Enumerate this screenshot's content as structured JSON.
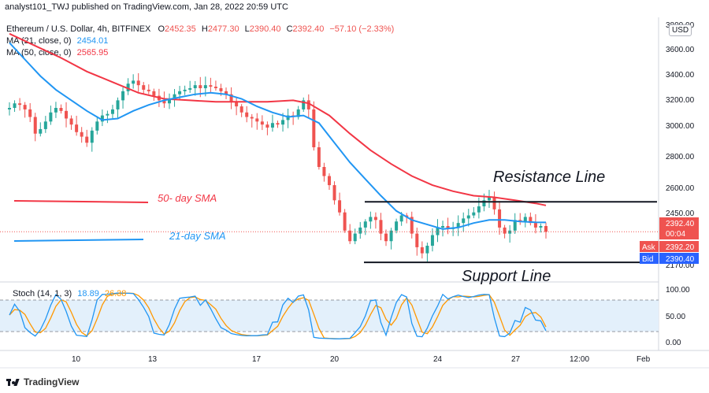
{
  "header": {
    "published": "analyst101_TWJ published on TradingView.com, Jan 28, 2022 20:59 UTC"
  },
  "ohlc_legend": {
    "symbol": "Ethereum / U.S. Dollar, 4h, BITFINEX",
    "o_label": "O",
    "o_value": "2452.35",
    "h_label": "H",
    "h_value": "2477.30",
    "l_label": "L",
    "l_value": "2390.40",
    "c_label": "C",
    "c_value": "2392.40",
    "change": "−57.10 (−2.33%)"
  },
  "ma_legends": [
    {
      "label": "MA (21, close, 0)",
      "value": "2454.01",
      "color": "#2196f3"
    },
    {
      "label": "MA (50, close, 0)",
      "value": "2565.95",
      "color": "#f23645"
    }
  ],
  "stoch_legend": {
    "label": "Stoch (14, 1, 3)",
    "k": "18.89",
    "d": "26.38",
    "k_color": "#2196f3",
    "d_color": "#ff9800"
  },
  "price_axis": {
    "currency": "USD",
    "ticks": [
      "3800.00",
      "3600.00",
      "3400.00",
      "3200.00",
      "3000.00",
      "2800.00",
      "2600.00",
      "2450.00",
      "2170.00"
    ],
    "last_price": "2392.40",
    "countdown": "00:04",
    "ask_label": "Ask",
    "ask_value": "2392.20",
    "bid_label": "Bid",
    "bid_value": "2390.40"
  },
  "stoch_axis": {
    "ticks": [
      "100.00",
      "50.00",
      "0.00"
    ]
  },
  "time_axis": {
    "ticks": [
      "10",
      "13",
      "17",
      "20",
      "24",
      "27",
      "12:00",
      "Feb"
    ]
  },
  "annotations": {
    "resistance": "Resistance  Line",
    "support": "Support Line",
    "sma50": "50- day SMA",
    "sma21": "21-day SMA"
  },
  "footer": {
    "brand": "TradingView"
  },
  "colors": {
    "up": "#26a69a",
    "down": "#ef5350",
    "ma21": "#2196f3",
    "ma50": "#f23645",
    "stoch_k": "#2196f3",
    "stoch_d": "#ff9800"
  },
  "chart_data": {
    "type": "candlestick",
    "timeframe": "4h",
    "symbol": "ETHUSD",
    "ylim": [
      2100,
      3850
    ],
    "resistance_level": 2590,
    "support_level": 2190,
    "close_path": [
      3210,
      3240,
      3230,
      3200,
      3150,
      3040,
      3070,
      3120,
      3180,
      3210,
      3190,
      3140,
      3100,
      3050,
      3020,
      2980,
      3060,
      3120,
      3160,
      3170,
      3200,
      3260,
      3320,
      3370,
      3390,
      3360,
      3330,
      3320,
      3290,
      3260,
      3240,
      3270,
      3300,
      3320,
      3330,
      3340,
      3360,
      3340,
      3360,
      3350,
      3340,
      3320,
      3300,
      3250,
      3220,
      3180,
      3150,
      3140,
      3120,
      3100,
      3080,
      3110,
      3100,
      3130,
      3160,
      3150,
      3200,
      3260,
      3200,
      2950,
      2820,
      2760,
      2700,
      2600,
      2520,
      2400,
      2330,
      2380,
      2420,
      2460,
      2490,
      2470,
      2380,
      2330,
      2400,
      2460,
      2500,
      2490,
      2380,
      2290,
      2250,
      2300,
      2370,
      2420,
      2430,
      2410,
      2420,
      2450,
      2480,
      2500,
      2520,
      2560,
      2600,
      2620,
      2540,
      2420,
      2380,
      2400,
      2470,
      2460,
      2490,
      2450,
      2420,
      2430,
      2392
    ],
    "ma21_points": [
      [
        0,
        3640
      ],
      [
        3,
        3530
      ],
      [
        6,
        3420
      ],
      [
        9,
        3330
      ],
      [
        12,
        3260
      ],
      [
        15,
        3190
      ],
      [
        18,
        3130
      ],
      [
        21,
        3140
      ],
      [
        24,
        3190
      ],
      [
        27,
        3230
      ],
      [
        30,
        3260
      ],
      [
        33,
        3280
      ],
      [
        36,
        3300
      ],
      [
        39,
        3310
      ],
      [
        42,
        3300
      ],
      [
        45,
        3270
      ],
      [
        48,
        3220
      ],
      [
        51,
        3180
      ],
      [
        54,
        3150
      ],
      [
        57,
        3160
      ],
      [
        60,
        3110
      ],
      [
        63,
        2980
      ],
      [
        66,
        2850
      ],
      [
        69,
        2740
      ],
      [
        72,
        2630
      ],
      [
        75,
        2530
      ],
      [
        78,
        2470
      ],
      [
        81,
        2440
      ],
      [
        84,
        2410
      ],
      [
        87,
        2420
      ],
      [
        90,
        2450
      ],
      [
        93,
        2470
      ],
      [
        96,
        2470
      ],
      [
        99,
        2460
      ],
      [
        102,
        2455
      ],
      [
        104,
        2454
      ]
    ],
    "ma50_points": [
      [
        0,
        3700
      ],
      [
        5,
        3620
      ],
      [
        10,
        3540
      ],
      [
        15,
        3450
      ],
      [
        20,
        3380
      ],
      [
        25,
        3310
      ],
      [
        30,
        3270
      ],
      [
        35,
        3260
      ],
      [
        40,
        3250
      ],
      [
        45,
        3250
      ],
      [
        50,
        3250
      ],
      [
        55,
        3260
      ],
      [
        58,
        3240
      ],
      [
        62,
        3160
      ],
      [
        66,
        3040
      ],
      [
        70,
        2930
      ],
      [
        74,
        2840
      ],
      [
        78,
        2760
      ],
      [
        82,
        2700
      ],
      [
        86,
        2660
      ],
      [
        90,
        2630
      ],
      [
        94,
        2620
      ],
      [
        98,
        2600
      ],
      [
        102,
        2580
      ],
      [
        104,
        2566
      ]
    ],
    "stoch_k_last": 18.89,
    "stoch_d_last": 26.38
  }
}
